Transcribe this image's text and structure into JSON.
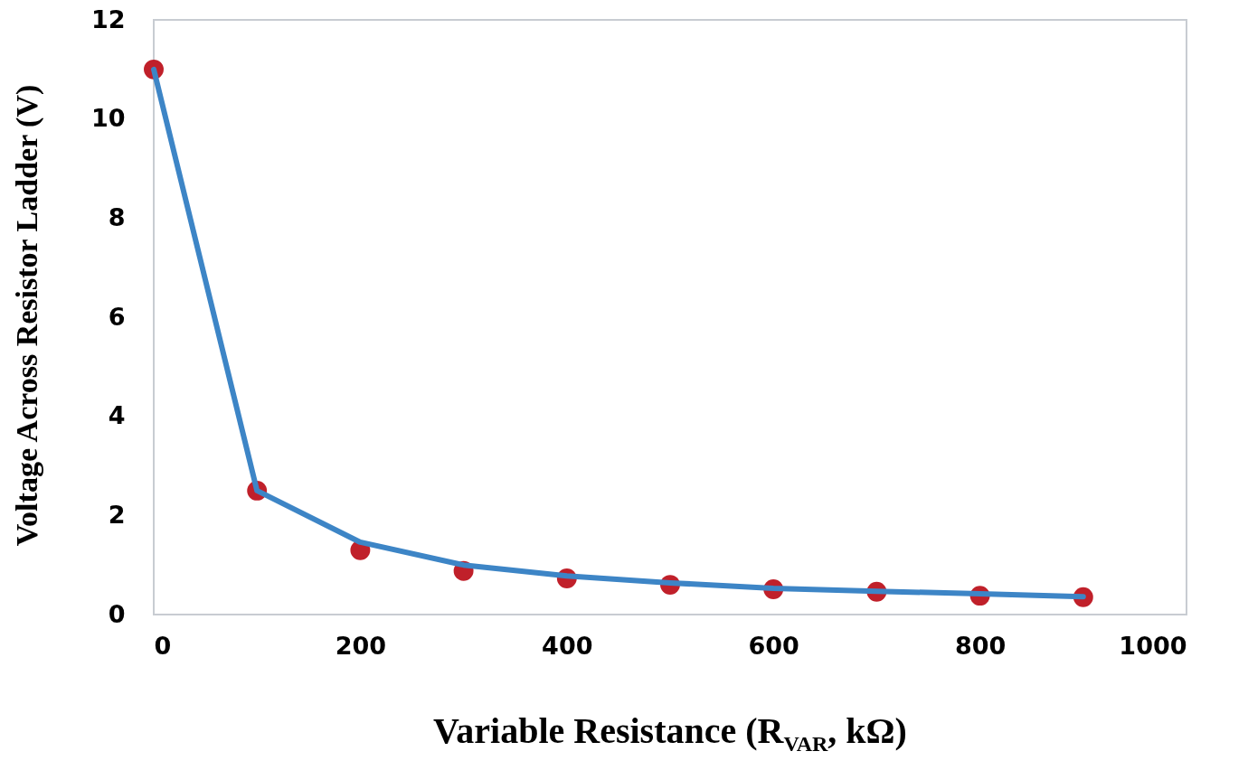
{
  "chart_data": {
    "type": "line",
    "xlabel": "Variable Resistance (R$_{VAR}$, kΩ)",
    "ylabel": "Voltage Across Resistor Ladder (V)",
    "xlim": [
      0,
      1000
    ],
    "xticks": [
      0,
      200,
      400,
      600,
      800,
      1000
    ],
    "ylim": [
      0,
      12
    ],
    "yticks": [
      0,
      2,
      4,
      6,
      8,
      10,
      12
    ],
    "series": [
      {
        "type": "scatter",
        "color": "#c0202a",
        "marker": "circle",
        "x": [
          0,
          100,
          200,
          300,
          400,
          500,
          600,
          700,
          800,
          900
        ],
        "values": [
          11,
          2.5,
          1.3,
          0.88,
          0.73,
          0.6,
          0.51,
          0.46,
          0.38,
          0.35
        ]
      },
      {
        "type": "line",
        "color": "#3d85c6",
        "line_style": "solid",
        "marker": "none",
        "x": [
          0,
          100,
          200,
          300,
          400,
          500,
          600,
          700,
          800,
          900
        ],
        "values": [
          11,
          2.5,
          1.46,
          1.0,
          0.78,
          0.64,
          0.53,
          0.47,
          0.42,
          0.36
        ]
      }
    ]
  }
}
